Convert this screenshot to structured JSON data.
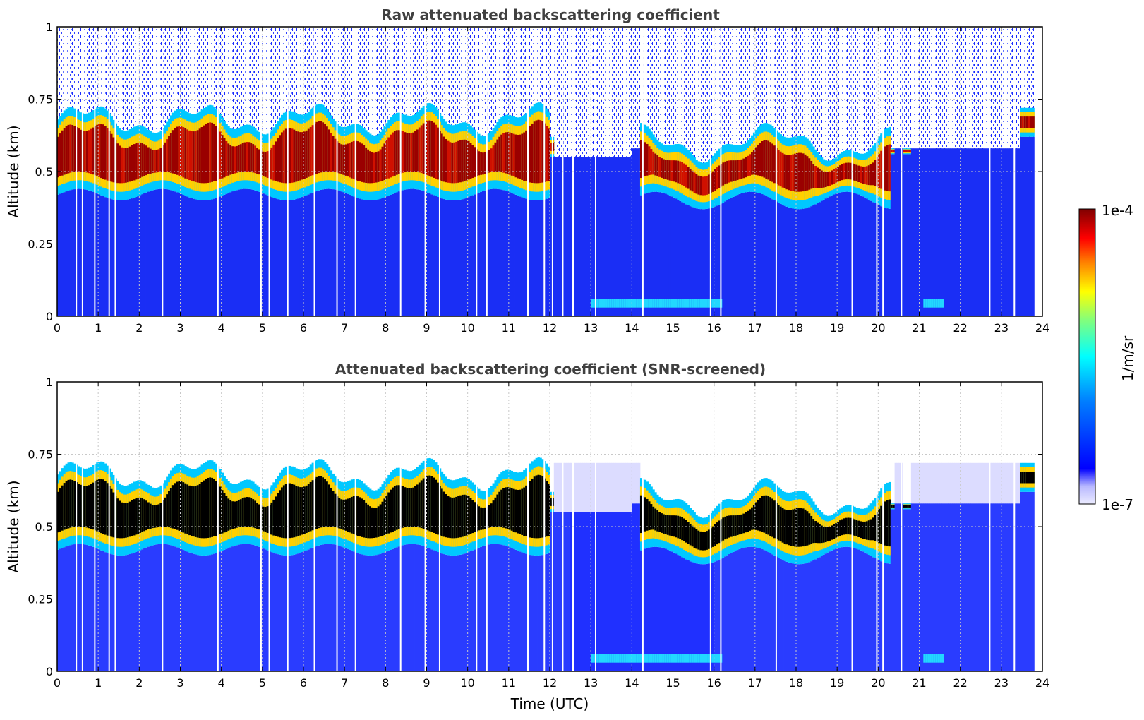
{
  "colors": {
    "jet": [
      "#00007f",
      "#0000ff",
      "#007fff",
      "#00ffff",
      "#7fff7f",
      "#ffff00",
      "#ff7f00",
      "#ff0000",
      "#7f0000"
    ],
    "background": "#ffffff",
    "title_text": "#404040"
  },
  "colorbar": {
    "max_label": "1e-4",
    "min_label": "1e-7",
    "unit_label": "1/m/sr",
    "scale": "log"
  },
  "xlabel": "Time (UTC)",
  "chart_data": [
    {
      "type": "heatmap",
      "title": "Raw attenuated backscattering coefficient",
      "ylabel": "Altitude (km)",
      "xlim": [
        0,
        24
      ],
      "ylim": [
        0,
        1
      ],
      "x_ticks": [
        "0",
        "1",
        "2",
        "3",
        "4",
        "5",
        "6",
        "7",
        "8",
        "9",
        "10",
        "11",
        "12",
        "13",
        "14",
        "15",
        "16",
        "17",
        "18",
        "19",
        "20",
        "21",
        "22",
        "23",
        "24"
      ],
      "y_ticks": [
        "0",
        "0.25",
        "0.5",
        "0.75",
        "1"
      ],
      "grid": true,
      "data_end_hour": 23.8,
      "cloud_layer_km": {
        "base_0_12h": 0.42,
        "top_0_12h": 0.68,
        "base_14_20h": 0.4,
        "top_14_20h": 0.6
      },
      "screened": false
    },
    {
      "type": "heatmap",
      "title": "Attenuated backscattering coefficient (SNR-screened)",
      "ylabel": "Altitude (km)",
      "xlim": [
        0,
        24
      ],
      "ylim": [
        0,
        1
      ],
      "x_ticks": [
        "0",
        "1",
        "2",
        "3",
        "4",
        "5",
        "6",
        "7",
        "8",
        "9",
        "10",
        "11",
        "12",
        "13",
        "14",
        "15",
        "16",
        "17",
        "18",
        "19",
        "20",
        "21",
        "22",
        "23",
        "24"
      ],
      "y_ticks": [
        "0",
        "0.25",
        "0.5",
        "0.75",
        "1"
      ],
      "grid": true,
      "data_end_hour": 23.8,
      "cloud_layer_km": {
        "base_0_12h": 0.42,
        "top_0_12h": 0.68,
        "base_14_20h": 0.4,
        "top_14_20h": 0.6
      },
      "screened": true
    }
  ]
}
